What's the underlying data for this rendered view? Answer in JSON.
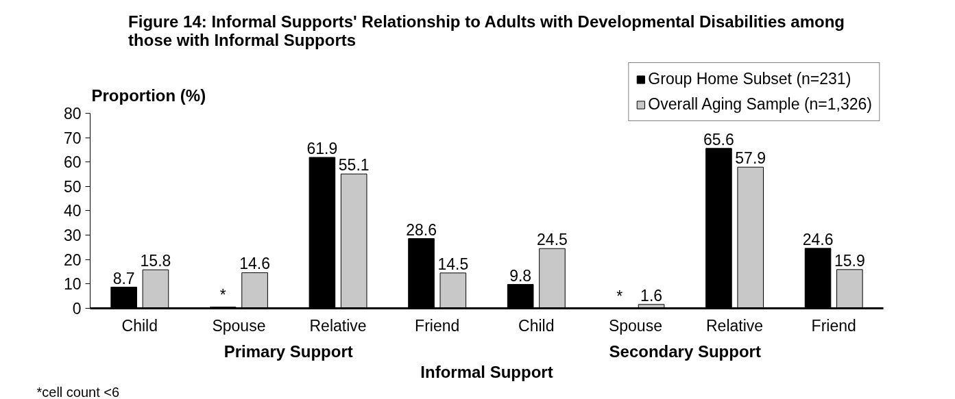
{
  "chart_data": {
    "type": "bar",
    "title": "Figure 14: Informal Supports' Relationship to Adults with Developmental Disabilities among those with Informal Supports",
    "ylabel": "Proportion (%)",
    "xlabel": "Informal Support",
    "categories": [
      "Child",
      "Spouse",
      "Relative",
      "Friend",
      "Child",
      "Spouse",
      "Relative",
      "Friend"
    ],
    "series": [
      {
        "name": "Group Home Subset (n=231)",
        "color": "#000000",
        "values": [
          8.7,
          0.5,
          61.9,
          28.6,
          9.8,
          null,
          65.6,
          24.6
        ],
        "value_labels": [
          "8.7",
          "*",
          "61.9",
          "28.6",
          "9.8",
          "*",
          "65.6",
          "24.6"
        ]
      },
      {
        "name": "Overall Aging Sample (n=1,326)",
        "color": "#c8c8c8",
        "values": [
          15.8,
          14.6,
          55.1,
          14.5,
          24.5,
          1.6,
          57.9,
          15.9
        ],
        "value_labels": [
          "15.8",
          "14.6",
          "55.1",
          "14.5",
          "24.5",
          "1.6",
          "57.9",
          "15.9"
        ]
      }
    ],
    "ylim": [
      0,
      80
    ],
    "yticks": [
      0,
      10,
      20,
      30,
      40,
      50,
      60,
      70,
      80
    ],
    "grid": false,
    "legend": "top right",
    "annotations": [
      "Primary Support",
      "Secondary Support",
      "*cell count <6"
    ]
  }
}
